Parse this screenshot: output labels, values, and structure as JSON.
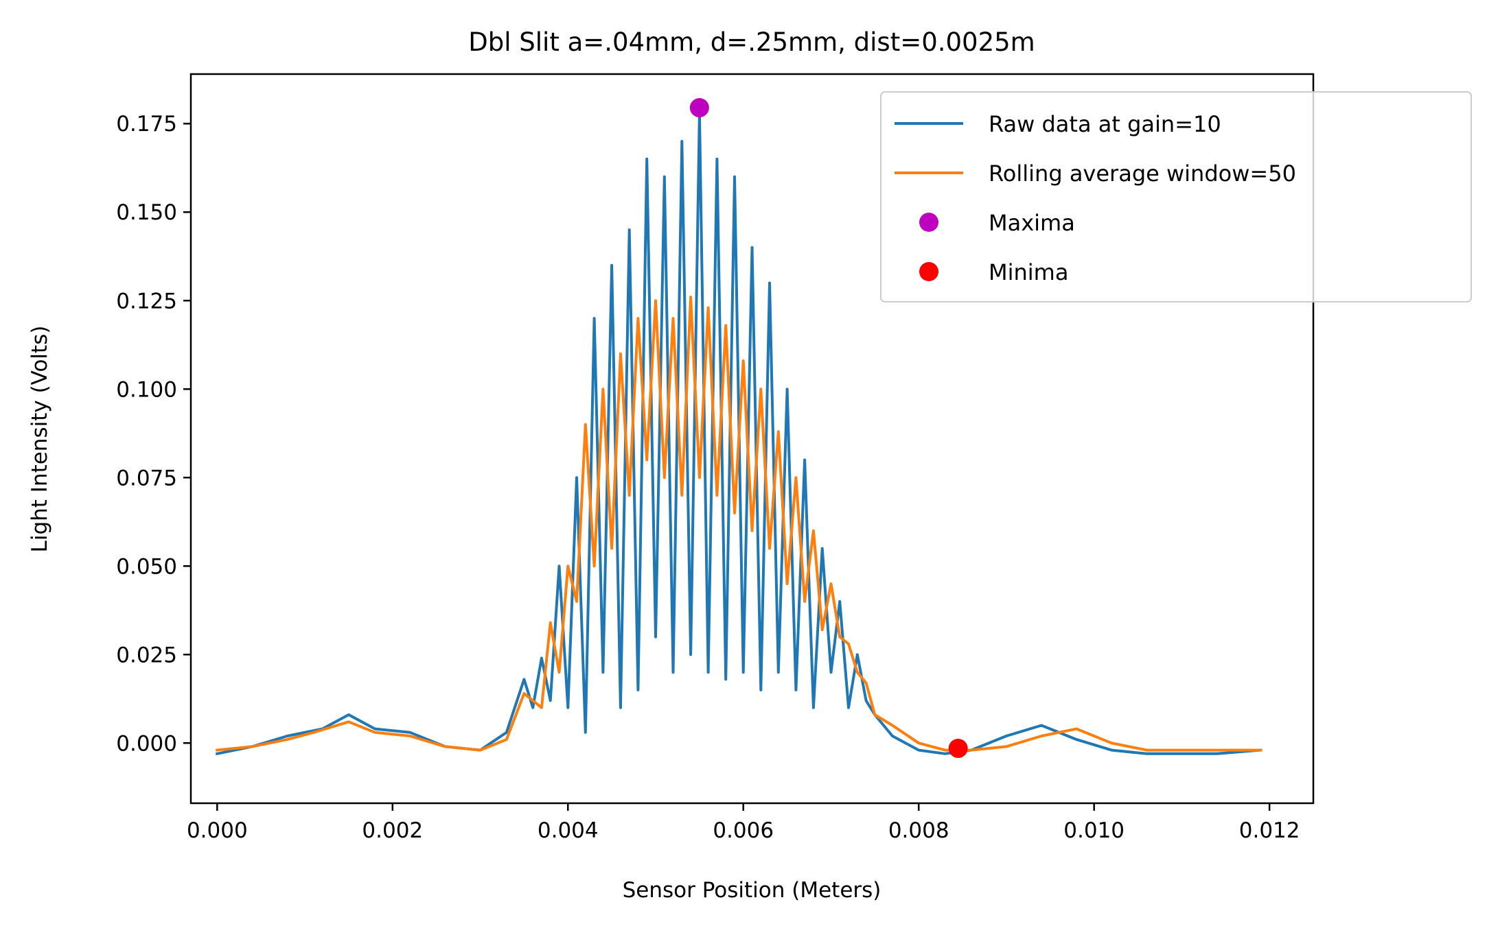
{
  "chart_data": {
    "type": "line",
    "title": "Dbl Slit a=.04mm, d=.25mm, dist=0.0025m",
    "xlabel": "Sensor Position (Meters)",
    "ylabel": "Light Intensity (Volts)",
    "xlim": [
      -0.0003,
      0.0125
    ],
    "ylim": [
      -0.017,
      0.189
    ],
    "x_ticks": [
      0.0,
      0.002,
      0.004,
      0.006,
      0.008,
      0.01,
      0.012
    ],
    "x_tick_labels": [
      "0.000",
      "0.002",
      "0.004",
      "0.006",
      "0.008",
      "0.010",
      "0.012"
    ],
    "y_ticks": [
      0.0,
      0.025,
      0.05,
      0.075,
      0.1,
      0.125,
      0.15,
      0.175
    ],
    "y_tick_labels": [
      "0.000",
      "0.025",
      "0.050",
      "0.075",
      "0.100",
      "0.125",
      "0.150",
      "0.175"
    ],
    "grid": false,
    "legend_position": "top-right",
    "series": [
      {
        "name": "Raw data at gain=10",
        "color": "#1f77b4",
        "kind": "line",
        "x": [
          0.0,
          0.0004,
          0.0008,
          0.0012,
          0.0015,
          0.0018,
          0.0022,
          0.0026,
          0.003,
          0.0033,
          0.0035,
          0.0036,
          0.0037,
          0.0038,
          0.0039,
          0.004,
          0.0041,
          0.0042,
          0.0043,
          0.0044,
          0.0045,
          0.0046,
          0.0047,
          0.0048,
          0.0049,
          0.005,
          0.0051,
          0.0052,
          0.0053,
          0.0054,
          0.0055,
          0.0056,
          0.0057,
          0.0058,
          0.0059,
          0.006,
          0.0061,
          0.0062,
          0.0063,
          0.0064,
          0.0065,
          0.0066,
          0.0067,
          0.0068,
          0.0069,
          0.007,
          0.0071,
          0.0072,
          0.0073,
          0.0074,
          0.0075,
          0.0077,
          0.008,
          0.0083,
          0.0086,
          0.009,
          0.0094,
          0.0098,
          0.0102,
          0.0106,
          0.011,
          0.0114,
          0.0119
        ],
        "y": [
          -0.003,
          -0.001,
          0.002,
          0.004,
          0.008,
          0.004,
          0.003,
          -0.001,
          -0.002,
          0.003,
          0.018,
          0.01,
          0.024,
          0.012,
          0.05,
          0.01,
          0.075,
          0.003,
          0.12,
          0.02,
          0.135,
          0.01,
          0.145,
          0.015,
          0.165,
          0.03,
          0.16,
          0.02,
          0.17,
          0.025,
          0.178,
          0.02,
          0.165,
          0.018,
          0.16,
          0.02,
          0.14,
          0.015,
          0.13,
          0.02,
          0.1,
          0.015,
          0.08,
          0.01,
          0.055,
          0.02,
          0.04,
          0.01,
          0.025,
          0.012,
          0.008,
          0.002,
          -0.002,
          -0.003,
          -0.002,
          0.002,
          0.005,
          0.001,
          -0.002,
          -0.003,
          -0.003,
          -0.003,
          -0.002
        ]
      },
      {
        "name": "Rolling average window=50",
        "color": "#ff7f0e",
        "kind": "line",
        "x": [
          0.0,
          0.0004,
          0.0008,
          0.0011,
          0.0015,
          0.0018,
          0.0022,
          0.0026,
          0.003,
          0.0033,
          0.0035,
          0.0037,
          0.0038,
          0.0039,
          0.004,
          0.0041,
          0.0042,
          0.0043,
          0.0044,
          0.0045,
          0.0046,
          0.0047,
          0.0048,
          0.0049,
          0.005,
          0.0051,
          0.0052,
          0.0053,
          0.0054,
          0.0055,
          0.0056,
          0.0057,
          0.0058,
          0.0059,
          0.006,
          0.0061,
          0.0062,
          0.0063,
          0.0064,
          0.0065,
          0.0066,
          0.0067,
          0.0068,
          0.0069,
          0.007,
          0.0071,
          0.0072,
          0.0073,
          0.0074,
          0.0075,
          0.0077,
          0.008,
          0.0083,
          0.0086,
          0.009,
          0.0094,
          0.0098,
          0.0102,
          0.0106,
          0.011,
          0.0114,
          0.0119
        ],
        "y": [
          -0.002,
          -0.001,
          0.001,
          0.003,
          0.006,
          0.003,
          0.002,
          -0.001,
          -0.002,
          0.001,
          0.014,
          0.01,
          0.034,
          0.02,
          0.05,
          0.04,
          0.09,
          0.05,
          0.1,
          0.055,
          0.11,
          0.07,
          0.12,
          0.08,
          0.125,
          0.075,
          0.12,
          0.07,
          0.126,
          0.075,
          0.123,
          0.07,
          0.118,
          0.065,
          0.108,
          0.06,
          0.1,
          0.055,
          0.088,
          0.045,
          0.075,
          0.04,
          0.06,
          0.032,
          0.045,
          0.03,
          0.028,
          0.02,
          0.017,
          0.008,
          0.005,
          0.0,
          -0.002,
          -0.002,
          -0.001,
          0.002,
          0.004,
          0.0,
          -0.002,
          -0.002,
          -0.002,
          -0.002
        ]
      },
      {
        "name": "Maxima",
        "color": "#bf00bf",
        "kind": "point",
        "x": [
          0.0055
        ],
        "y": [
          0.1795
        ]
      },
      {
        "name": "Minima",
        "color": "#ff0000",
        "kind": "point",
        "x": [
          0.00845
        ],
        "y": [
          -0.0015
        ]
      }
    ]
  }
}
